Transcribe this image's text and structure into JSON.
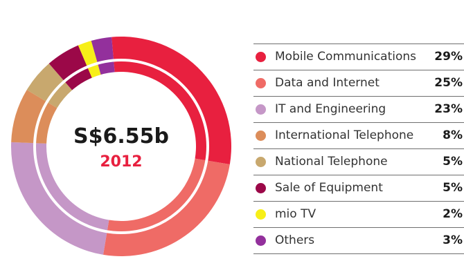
{
  "chart_data": {
    "type": "pie",
    "center_value": "S$6.55b",
    "center_year": "2012",
    "slices": [
      {
        "label": "Mobile Communications",
        "value": 29,
        "display": "29%",
        "color": "#e8203f"
      },
      {
        "label": "Data and Internet",
        "value": 25,
        "display": "25%",
        "color": "#ef6b66"
      },
      {
        "label": "IT and Engineering",
        "value": 23,
        "display": "23%",
        "color": "#c597c7"
      },
      {
        "label": "International Telephone",
        "value": 8,
        "display": "8%",
        "color": "#dc8d5a"
      },
      {
        "label": "National Telephone",
        "value": 5,
        "display": "5%",
        "color": "#c8a86e"
      },
      {
        "label": "Sale of Equipment",
        "value": 5,
        "display": "5%",
        "color": "#9b0848"
      },
      {
        "label": "mio TV",
        "value": 2,
        "display": "2%",
        "color": "#f7ef18"
      },
      {
        "label": "Others",
        "value": 3,
        "display": "3%",
        "color": "#93309c"
      }
    ]
  }
}
